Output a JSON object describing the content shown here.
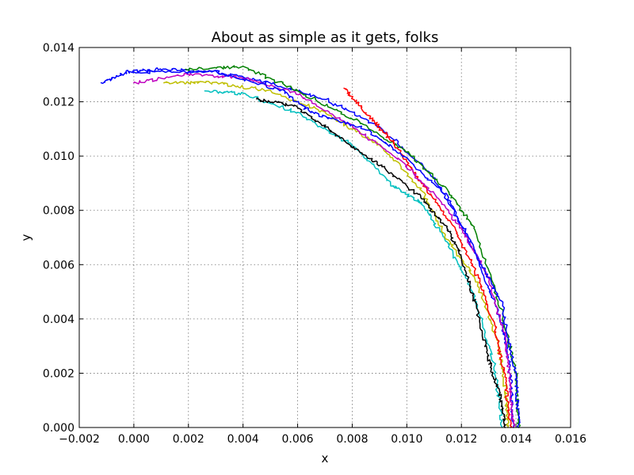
{
  "chart_data": {
    "type": "line",
    "title": "About as simple as it gets, folks",
    "xlabel": "x",
    "ylabel": "y",
    "xlim": [
      -0.002,
      0.016
    ],
    "ylim": [
      0.0,
      0.014
    ],
    "grid": true,
    "x_ticks": [
      "−0.002",
      "0.000",
      "0.002",
      "0.004",
      "0.006",
      "0.008",
      "0.010",
      "0.012",
      "0.014",
      "0.016"
    ],
    "y_ticks": [
      "0.000",
      "0.002",
      "0.004",
      "0.006",
      "0.008",
      "0.010",
      "0.012",
      "0.014"
    ],
    "series": [
      {
        "color": "#0000ff",
        "points": [
          [
            -0.0012,
            0.0127
          ],
          [
            -0.0002,
            0.0131
          ],
          [
            0.001,
            0.0132
          ],
          [
            0.003,
            0.0131
          ],
          [
            0.005,
            0.0127
          ],
          [
            0.007,
            0.0121
          ],
          [
            0.009,
            0.0111
          ],
          [
            0.011,
            0.0092
          ],
          [
            0.0125,
            0.0065
          ],
          [
            0.0135,
            0.0038
          ],
          [
            0.0138,
            0.002
          ],
          [
            0.0139,
            0.0
          ]
        ]
      },
      {
        "color": "#00bfbf",
        "points": [
          [
            0.0026,
            0.0124
          ],
          [
            0.004,
            0.0123
          ],
          [
            0.006,
            0.0116
          ],
          [
            0.008,
            0.0104
          ],
          [
            0.0095,
            0.0089
          ],
          [
            0.0105,
            0.0083
          ],
          [
            0.0115,
            0.0068
          ],
          [
            0.0125,
            0.0048
          ],
          [
            0.0132,
            0.0023
          ],
          [
            0.0135,
            0.0
          ]
        ]
      },
      {
        "color": "#bfbf00",
        "points": [
          [
            0.0011,
            0.0127
          ],
          [
            0.003,
            0.0127
          ],
          [
            0.005,
            0.0124
          ],
          [
            0.007,
            0.0116
          ],
          [
            0.009,
            0.0104
          ],
          [
            0.0105,
            0.0088
          ],
          [
            0.0115,
            0.0069
          ],
          [
            0.0125,
            0.0055
          ],
          [
            0.0133,
            0.0033
          ],
          [
            0.0136,
            0.0015
          ],
          [
            0.0137,
            0.0
          ]
        ]
      },
      {
        "color": "#008000",
        "points": [
          [
            0.0019,
            0.0132
          ],
          [
            0.004,
            0.0133
          ],
          [
            0.006,
            0.0124
          ],
          [
            0.008,
            0.0114
          ],
          [
            0.01,
            0.0102
          ],
          [
            0.0115,
            0.0087
          ],
          [
            0.0125,
            0.0073
          ],
          [
            0.0135,
            0.0042
          ],
          [
            0.014,
            0.002
          ],
          [
            0.0141,
            0.0
          ]
        ]
      },
      {
        "color": "#ff0000",
        "points": [
          [
            0.0077,
            0.0125
          ],
          [
            0.0085,
            0.0116
          ],
          [
            0.0095,
            0.0105
          ],
          [
            0.0105,
            0.0091
          ],
          [
            0.0117,
            0.0074
          ],
          [
            0.0125,
            0.0058
          ],
          [
            0.0132,
            0.0038
          ],
          [
            0.0136,
            0.0018
          ],
          [
            0.0138,
            0.0
          ]
        ]
      },
      {
        "color": "#bf00bf",
        "points": [
          [
            0.0,
            0.0127
          ],
          [
            0.002,
            0.013
          ],
          [
            0.004,
            0.0129
          ],
          [
            0.006,
            0.0123
          ],
          [
            0.008,
            0.0111
          ],
          [
            0.0098,
            0.0098
          ],
          [
            0.0112,
            0.0084
          ],
          [
            0.0122,
            0.007
          ],
          [
            0.013,
            0.0055
          ],
          [
            0.0136,
            0.0033
          ],
          [
            0.0138,
            0.0015
          ],
          [
            0.0139,
            0.0
          ]
        ]
      },
      {
        "color": "#000000",
        "points": [
          [
            0.0045,
            0.0121
          ],
          [
            0.006,
            0.0118
          ],
          [
            0.0075,
            0.0107
          ],
          [
            0.009,
            0.0097
          ],
          [
            0.0105,
            0.0085
          ],
          [
            0.0115,
            0.0073
          ],
          [
            0.012,
            0.0063
          ],
          [
            0.0125,
            0.0046
          ],
          [
            0.013,
            0.0025
          ],
          [
            0.0134,
            0.0012
          ],
          [
            0.0136,
            0.0
          ]
        ]
      },
      {
        "color": "#0000ff",
        "points": [
          [
            0.0,
            0.0131
          ],
          [
            0.003,
            0.0131
          ],
          [
            0.0055,
            0.0124
          ],
          [
            0.0065,
            0.0116
          ],
          [
            0.0085,
            0.011
          ],
          [
            0.01,
            0.0099
          ],
          [
            0.0115,
            0.0085
          ],
          [
            0.0125,
            0.0065
          ],
          [
            0.0135,
            0.0045
          ],
          [
            0.014,
            0.0018
          ],
          [
            0.0141,
            0.0
          ]
        ]
      }
    ]
  }
}
